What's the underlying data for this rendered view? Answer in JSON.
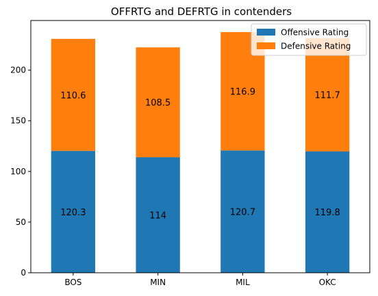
{
  "chart_data": {
    "type": "bar",
    "stacked": true,
    "title": "OFFRTG and DEFRTG in contenders",
    "xlabel": "",
    "ylabel": "",
    "categories": [
      "BOS",
      "MIN",
      "MIL",
      "OKC"
    ],
    "series": [
      {
        "name": "Offensive Rating",
        "values": [
          120.3,
          114,
          120.7,
          119.8
        ],
        "color": "#1f77b4"
      },
      {
        "name": "Defensive Rating",
        "values": [
          110.6,
          108.5,
          116.9,
          111.7
        ],
        "color": "#ff7f0e"
      }
    ],
    "data_labels": [
      [
        "120.3",
        "114",
        "120.7",
        "119.8"
      ],
      [
        "110.6",
        "108.5",
        "116.9",
        "111.7"
      ]
    ],
    "ylim": [
      0,
      249
    ],
    "yticks": [
      0,
      50,
      100,
      150,
      200
    ],
    "grid": false,
    "legend_position": "top-right"
  }
}
